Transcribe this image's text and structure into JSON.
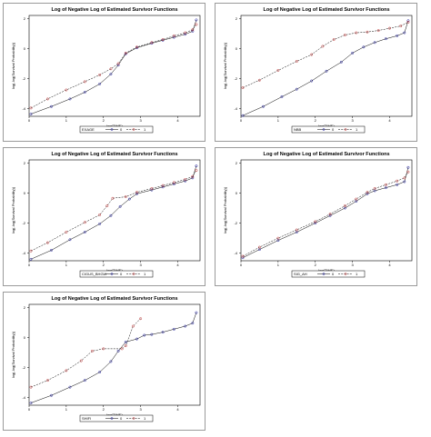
{
  "chart_data": [
    {
      "type": "line",
      "title": "Log of Negative Log of Estimated Survivor Functions",
      "xlabel": "log(TIME)",
      "ylabel": "log(-log(Survival Probability))",
      "xlim": [
        0,
        4.6
      ],
      "ylim": [
        -4.5,
        2.2
      ],
      "xticks": [
        0,
        1,
        2,
        3,
        4
      ],
      "yticks": [
        -4,
        -2,
        0,
        2
      ],
      "legend": {
        "variable": "EXAGE",
        "entries": [
          "0",
          "1"
        ]
      },
      "series": [
        {
          "name": "0",
          "color": "#1f1f9f",
          "points": [
            [
              0.05,
              -4.35
            ],
            [
              0.6,
              -3.85
            ],
            [
              1.1,
              -3.35
            ],
            [
              1.5,
              -2.9
            ],
            [
              1.9,
              -2.35
            ],
            [
              2.2,
              -1.7
            ],
            [
              2.4,
              -1.1
            ],
            [
              2.6,
              -0.35
            ],
            [
              2.9,
              0.05
            ],
            [
              3.3,
              0.35
            ],
            [
              3.6,
              0.55
            ],
            [
              3.9,
              0.75
            ],
            [
              4.2,
              0.95
            ],
            [
              4.4,
              1.15
            ],
            [
              4.5,
              1.9
            ]
          ]
        },
        {
          "name": "1",
          "color": "#c03030",
          "points": [
            [
              0.05,
              -3.95
            ],
            [
              0.5,
              -3.35
            ],
            [
              1.0,
              -2.75
            ],
            [
              1.5,
              -2.2
            ],
            [
              1.9,
              -1.75
            ],
            [
              2.2,
              -1.35
            ],
            [
              2.4,
              -1.0
            ],
            [
              2.6,
              -0.3
            ],
            [
              2.9,
              0.1
            ],
            [
              3.3,
              0.4
            ],
            [
              3.6,
              0.6
            ],
            [
              3.9,
              0.85
            ],
            [
              4.2,
              1.05
            ],
            [
              4.4,
              1.25
            ],
            [
              4.5,
              1.6
            ]
          ]
        }
      ]
    },
    {
      "type": "line",
      "title": "Log of Negative Log of Estimated Survivor Functions",
      "xlabel": "log(TIME)",
      "ylabel": "log(-log(Survival Probability))",
      "xlim": [
        0,
        4.6
      ],
      "ylim": [
        -4.5,
        2.2
      ],
      "xticks": [
        0,
        1,
        2,
        3,
        4
      ],
      "yticks": [
        -4,
        -2,
        0,
        2
      ],
      "legend": {
        "variable": "NBB",
        "entries": [
          "0",
          "1"
        ]
      },
      "series": [
        {
          "name": "0",
          "color": "#1f1f9f",
          "points": [
            [
              0.05,
              -4.45
            ],
            [
              0.6,
              -3.85
            ],
            [
              1.1,
              -3.2
            ],
            [
              1.5,
              -2.7
            ],
            [
              1.9,
              -2.15
            ],
            [
              2.3,
              -1.5
            ],
            [
              2.7,
              -0.9
            ],
            [
              3.0,
              -0.3
            ],
            [
              3.3,
              0.1
            ],
            [
              3.6,
              0.4
            ],
            [
              3.9,
              0.65
            ],
            [
              4.2,
              0.85
            ],
            [
              4.4,
              1.05
            ],
            [
              4.5,
              1.85
            ]
          ]
        },
        {
          "name": "1",
          "color": "#c03030",
          "points": [
            [
              0.05,
              -2.6
            ],
            [
              0.5,
              -2.1
            ],
            [
              1.0,
              -1.45
            ],
            [
              1.5,
              -0.85
            ],
            [
              1.9,
              -0.4
            ],
            [
              2.2,
              0.15
            ],
            [
              2.5,
              0.6
            ],
            [
              2.8,
              0.9
            ],
            [
              3.1,
              1.05
            ],
            [
              3.4,
              1.1
            ],
            [
              3.7,
              1.2
            ],
            [
              4.0,
              1.35
            ],
            [
              4.3,
              1.5
            ],
            [
              4.5,
              1.75
            ]
          ]
        }
      ]
    },
    {
      "type": "line",
      "title": "Log of Negative Log of Estimated Survivor Functions",
      "xlabel": "log(TIME)",
      "ylabel": "log(-log(Survival Probability))",
      "xlim": [
        0,
        4.6
      ],
      "ylim": [
        -4.5,
        2.2
      ],
      "xticks": [
        0,
        1,
        2,
        3,
        4
      ],
      "yticks": [
        -4,
        -2,
        0,
        2
      ],
      "legend": {
        "variable": "CIGUS_BHGW",
        "entries": [
          "0",
          "1"
        ]
      },
      "series": [
        {
          "name": "0",
          "color": "#1f1f9f",
          "points": [
            [
              0.05,
              -4.4
            ],
            [
              0.6,
              -3.8
            ],
            [
              1.1,
              -3.1
            ],
            [
              1.5,
              -2.6
            ],
            [
              1.9,
              -2.05
            ],
            [
              2.2,
              -1.5
            ],
            [
              2.45,
              -0.9
            ],
            [
              2.7,
              -0.4
            ],
            [
              2.9,
              -0.05
            ],
            [
              3.3,
              0.2
            ],
            [
              3.6,
              0.4
            ],
            [
              3.9,
              0.6
            ],
            [
              4.2,
              0.8
            ],
            [
              4.4,
              1.0
            ],
            [
              4.5,
              1.8
            ]
          ]
        },
        {
          "name": "1",
          "color": "#c03030",
          "points": [
            [
              0.05,
              -3.85
            ],
            [
              0.5,
              -3.3
            ],
            [
              1.0,
              -2.6
            ],
            [
              1.5,
              -1.95
            ],
            [
              1.9,
              -1.45
            ],
            [
              2.1,
              -0.85
            ],
            [
              2.25,
              -0.35
            ],
            [
              2.6,
              -0.25
            ],
            [
              2.9,
              0.05
            ],
            [
              3.3,
              0.3
            ],
            [
              3.6,
              0.5
            ],
            [
              3.9,
              0.7
            ],
            [
              4.2,
              0.9
            ],
            [
              4.4,
              1.1
            ],
            [
              4.5,
              1.5
            ]
          ]
        }
      ]
    },
    {
      "type": "line",
      "title": "Log of Negative Log of Estimated Survivor Functions",
      "xlabel": "log(TIME)",
      "ylabel": "log(-log(Survival Probability))",
      "xlim": [
        0,
        4.6
      ],
      "ylim": [
        -4.5,
        2.2
      ],
      "xticks": [
        0,
        1,
        2,
        3,
        4
      ],
      "yticks": [
        -4,
        -2,
        0,
        2
      ],
      "legend": {
        "variable": "SIG_AH",
        "entries": [
          "0",
          "1"
        ]
      },
      "series": [
        {
          "name": "0",
          "color": "#1f1f9f",
          "points": [
            [
              0.05,
              -4.3
            ],
            [
              0.5,
              -3.75
            ],
            [
              1.0,
              -3.15
            ],
            [
              1.5,
              -2.6
            ],
            [
              2.0,
              -2.0
            ],
            [
              2.4,
              -1.5
            ],
            [
              2.8,
              -1.0
            ],
            [
              3.1,
              -0.55
            ],
            [
              3.4,
              -0.05
            ],
            [
              3.6,
              0.15
            ],
            [
              3.9,
              0.35
            ],
            [
              4.2,
              0.55
            ],
            [
              4.4,
              0.75
            ],
            [
              4.5,
              1.7
            ]
          ]
        },
        {
          "name": "1",
          "color": "#c03030",
          "points": [
            [
              0.05,
              -4.2
            ],
            [
              0.5,
              -3.6
            ],
            [
              1.0,
              -3.0
            ],
            [
              1.5,
              -2.45
            ],
            [
              2.0,
              -1.9
            ],
            [
              2.4,
              -1.4
            ],
            [
              2.8,
              -0.85
            ],
            [
              3.1,
              -0.4
            ],
            [
              3.4,
              0.05
            ],
            [
              3.6,
              0.3
            ],
            [
              3.9,
              0.55
            ],
            [
              4.2,
              0.8
            ],
            [
              4.4,
              1.0
            ],
            [
              4.5,
              1.4
            ]
          ]
        }
      ]
    },
    {
      "type": "line",
      "title": "Log of Negative Log of Estimated Survivor Functions",
      "xlabel": "log(TIME)",
      "ylabel": "log(-log(Survival Probability))",
      "xlim": [
        0,
        4.6
      ],
      "ylim": [
        -4.5,
        2.2
      ],
      "xticks": [
        0,
        1,
        2,
        3,
        4
      ],
      "yticks": [
        -4,
        -2,
        0,
        2
      ],
      "legend": {
        "variable": "SHIFI",
        "entries": [
          "0",
          "1"
        ]
      },
      "series": [
        {
          "name": "0",
          "color": "#1f1f9f",
          "points": [
            [
              0.05,
              -4.35
            ],
            [
              0.6,
              -3.85
            ],
            [
              1.1,
              -3.3
            ],
            [
              1.5,
              -2.85
            ],
            [
              1.9,
              -2.3
            ],
            [
              2.2,
              -1.6
            ],
            [
              2.4,
              -0.9
            ],
            [
              2.6,
              -0.3
            ],
            [
              2.9,
              -0.1
            ],
            [
              3.1,
              0.15
            ],
            [
              3.3,
              0.2
            ],
            [
              3.6,
              0.35
            ],
            [
              3.9,
              0.55
            ],
            [
              4.2,
              0.75
            ],
            [
              4.4,
              0.95
            ],
            [
              4.5,
              1.65
            ]
          ]
        },
        {
          "name": "1",
          "color": "#c03030",
          "points": [
            [
              0.05,
              -3.3
            ],
            [
              0.5,
              -2.85
            ],
            [
              1.0,
              -2.2
            ],
            [
              1.4,
              -1.55
            ],
            [
              1.7,
              -0.9
            ],
            [
              2.0,
              -0.75
            ],
            [
              2.5,
              -0.75
            ],
            [
              2.6,
              -0.55
            ],
            [
              2.8,
              0.75
            ],
            [
              3.0,
              1.25
            ]
          ]
        }
      ]
    }
  ]
}
